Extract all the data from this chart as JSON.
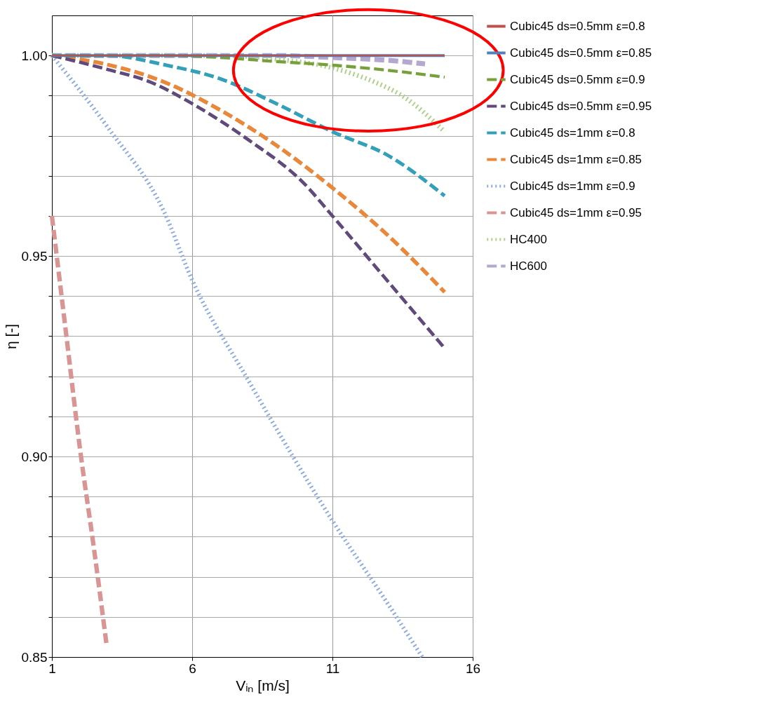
{
  "chart_data": {
    "type": "line",
    "xlabel": "Vᵢₙ [m/s]",
    "ylabel": "η [-]",
    "xlim": [
      1,
      16
    ],
    "xticks": [
      1,
      6,
      11,
      16
    ],
    "ylim": [
      0.85,
      1.01
    ],
    "yticks": [
      {
        "value": 0.85,
        "label": "0.85"
      },
      {
        "value": 0.86,
        "label": null
      },
      {
        "value": 0.87,
        "label": null
      },
      {
        "value": 0.88,
        "label": null
      },
      {
        "value": 0.89,
        "label": null
      },
      {
        "value": 0.9,
        "label": "0.90"
      },
      {
        "value": 0.91,
        "label": null
      },
      {
        "value": 0.92,
        "label": null
      },
      {
        "value": 0.93,
        "label": null
      },
      {
        "value": 0.94,
        "label": null
      },
      {
        "value": 0.95,
        "label": "0.95"
      },
      {
        "value": 0.96,
        "label": null
      },
      {
        "value": 0.97,
        "label": null
      },
      {
        "value": 0.98,
        "label": null
      },
      {
        "value": 0.99,
        "label": null
      },
      {
        "value": 1.0,
        "label": "1.00"
      }
    ],
    "grid": true,
    "legend": "right",
    "marker": "none",
    "series": [
      {
        "name": "Cubic45 ds=0.5mm ε=0.8",
        "color": "#c0504d",
        "line_style": "solid",
        "x": [
          1,
          3,
          5,
          7,
          9,
          11,
          13,
          15
        ],
        "values": [
          1.0,
          1.0,
          1.0,
          1.0,
          1.0,
          1.0,
          1.0,
          1.0
        ]
      },
      {
        "name": "Cubic45 ds=0.5mm ε=0.85",
        "color": "#4f81bd",
        "line_style": "solid",
        "x": [
          1,
          3,
          5,
          7,
          9,
          11,
          13,
          15
        ],
        "values": [
          1.0,
          1.0,
          1.0,
          1.0,
          1.0,
          1.0,
          1.0,
          1.0
        ]
      },
      {
        "name": "Cubic45 ds=0.5mm ε=0.9",
        "color": "#77a03a",
        "line_style": "dashed",
        "x": [
          1,
          5,
          7,
          9,
          11,
          13,
          15
        ],
        "values": [
          1.0,
          1.0,
          0.9995,
          0.9985,
          0.9976,
          0.9963,
          0.9946
        ]
      },
      {
        "name": "Cubic45 ds=0.5mm ε=0.95",
        "color": "#604a7b",
        "line_style": "dashed",
        "x": [
          1,
          3,
          4.5,
          6,
          8,
          10,
          11,
          13,
          15
        ],
        "values": [
          1.0,
          0.9965,
          0.9934,
          0.988,
          0.979,
          0.968,
          0.96,
          0.9435,
          0.927
        ]
      },
      {
        "name": "Cubic45 ds=1mm ε=0.8",
        "color": "#31a0b8",
        "line_style": "dashed",
        "x": [
          1,
          3,
          5,
          7,
          9,
          11,
          13,
          15
        ],
        "values": [
          1.0,
          1.0,
          0.9977,
          0.9942,
          0.988,
          0.981,
          0.975,
          0.965
        ]
      },
      {
        "name": "Cubic45 ds=1mm ε=0.85",
        "color": "#e9883b",
        "line_style": "dashed",
        "x": [
          1,
          3,
          5,
          7,
          9,
          11,
          13,
          15
        ],
        "values": [
          1.0,
          0.9977,
          0.9934,
          0.9864,
          0.9776,
          0.967,
          0.955,
          0.941
        ]
      },
      {
        "name": "Cubic45 ds=1mm ε=0.9",
        "color": "#8faadc",
        "line_style": "dotted",
        "x": [
          1,
          3,
          5,
          6,
          8,
          11,
          13,
          14.2
        ],
        "values": [
          1.0,
          0.982,
          0.961,
          0.944,
          0.919,
          0.884,
          0.863,
          0.85
        ]
      },
      {
        "name": "Cubic45 ds=1mm ε=0.95",
        "color": "#d99594",
        "line_style": "dashed",
        "x": [
          1,
          1.5,
          2,
          2.5,
          2.95
        ],
        "values": [
          0.96,
          0.931,
          0.902,
          0.877,
          0.853
        ]
      },
      {
        "name": "HC400",
        "color": "#aed08a",
        "line_style": "dotted",
        "x": [
          1,
          5,
          7,
          9,
          11,
          12.5,
          13.5,
          15
        ],
        "values": [
          1.0,
          1.0,
          1.0,
          0.9991,
          0.9969,
          0.9934,
          0.9899,
          0.981
        ]
      },
      {
        "name": "HC600",
        "color": "#b4a7d0",
        "line_style": "dashed",
        "x": [
          1,
          5,
          9,
          11,
          13,
          14.3
        ],
        "values": [
          1.0,
          1.0,
          1.0,
          0.9995,
          0.9988,
          0.9979
        ]
      }
    ]
  }
}
